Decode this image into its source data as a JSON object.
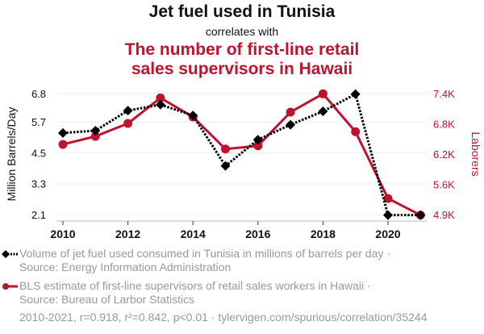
{
  "header": {
    "title": "Jet fuel used in Tunisia",
    "connector": "correlates with",
    "subtitle_line1": "The number of first-line retail",
    "subtitle_line2": "sales supervisors in Hawaii"
  },
  "legend": {
    "series1_line1": "Volume of jet fuel used consumed in Tunisia in millions of barrels per day ·",
    "series1_line2": "Source: Energy Information Administration",
    "series2_line1": "BLS estimate of first-line supervisors of retail sales workers in Hawaii ·",
    "series2_line2": "Source: Bureau of Larbor Statistics"
  },
  "footer": "2010-2021, r=0.918, r²=0.842, p<0.01 · tylervigen.com/spurious/correlation/35244",
  "colors": {
    "fuel": "#000000",
    "laborers": "#C0122F",
    "grid": "#EEEEEE"
  },
  "chart_data": {
    "type": "line",
    "title": "Jet fuel used in Tunisia correlates with The number of first-line retail sales supervisors in Hawaii",
    "x": [
      2010,
      2011,
      2012,
      2013,
      2014,
      2015,
      2016,
      2017,
      2018,
      2019,
      2020,
      2021
    ],
    "x_ticks": [
      "2010",
      "2012",
      "2014",
      "2016",
      "2018",
      "2020"
    ],
    "xlabel": "",
    "series": [
      {
        "name": "Volume of jet fuel used consumed in Tunisia in millions of barrels per day",
        "axis": "left",
        "style": "dotted",
        "marker": "diamond",
        "values": [
          5.27,
          5.36,
          6.14,
          6.37,
          5.95,
          3.99,
          5.01,
          5.59,
          6.11,
          6.78,
          2.08,
          2.08
        ]
      },
      {
        "name": "BLS estimate of first-line supervisors of retail sales workers in Hawaii",
        "axis": "right",
        "style": "solid",
        "marker": "circle",
        "values": [
          6369,
          6534,
          6798,
          7322,
          6931,
          6274,
          6340,
          7030,
          7405,
          6628,
          5261,
          4919
        ]
      }
    ],
    "y_left": {
      "label": "Million Barrels/Day",
      "ticks": [
        6.8,
        5.7,
        4.5,
        3.3,
        2.1
      ],
      "tick_labels": [
        "6.8",
        "5.7",
        "4.5",
        "3.3",
        "2.1"
      ],
      "range": [
        2.1,
        6.8
      ]
    },
    "y_right": {
      "label": "Laborers",
      "ticks": [
        7410,
        6790,
        6170,
        5550,
        4930
      ],
      "tick_labels": [
        "7.4K",
        "6.8K",
        "6.2K",
        "5.6K",
        "4.9K"
      ],
      "range": [
        4930,
        7410
      ]
    },
    "grid": true,
    "legend_position": "bottom"
  }
}
